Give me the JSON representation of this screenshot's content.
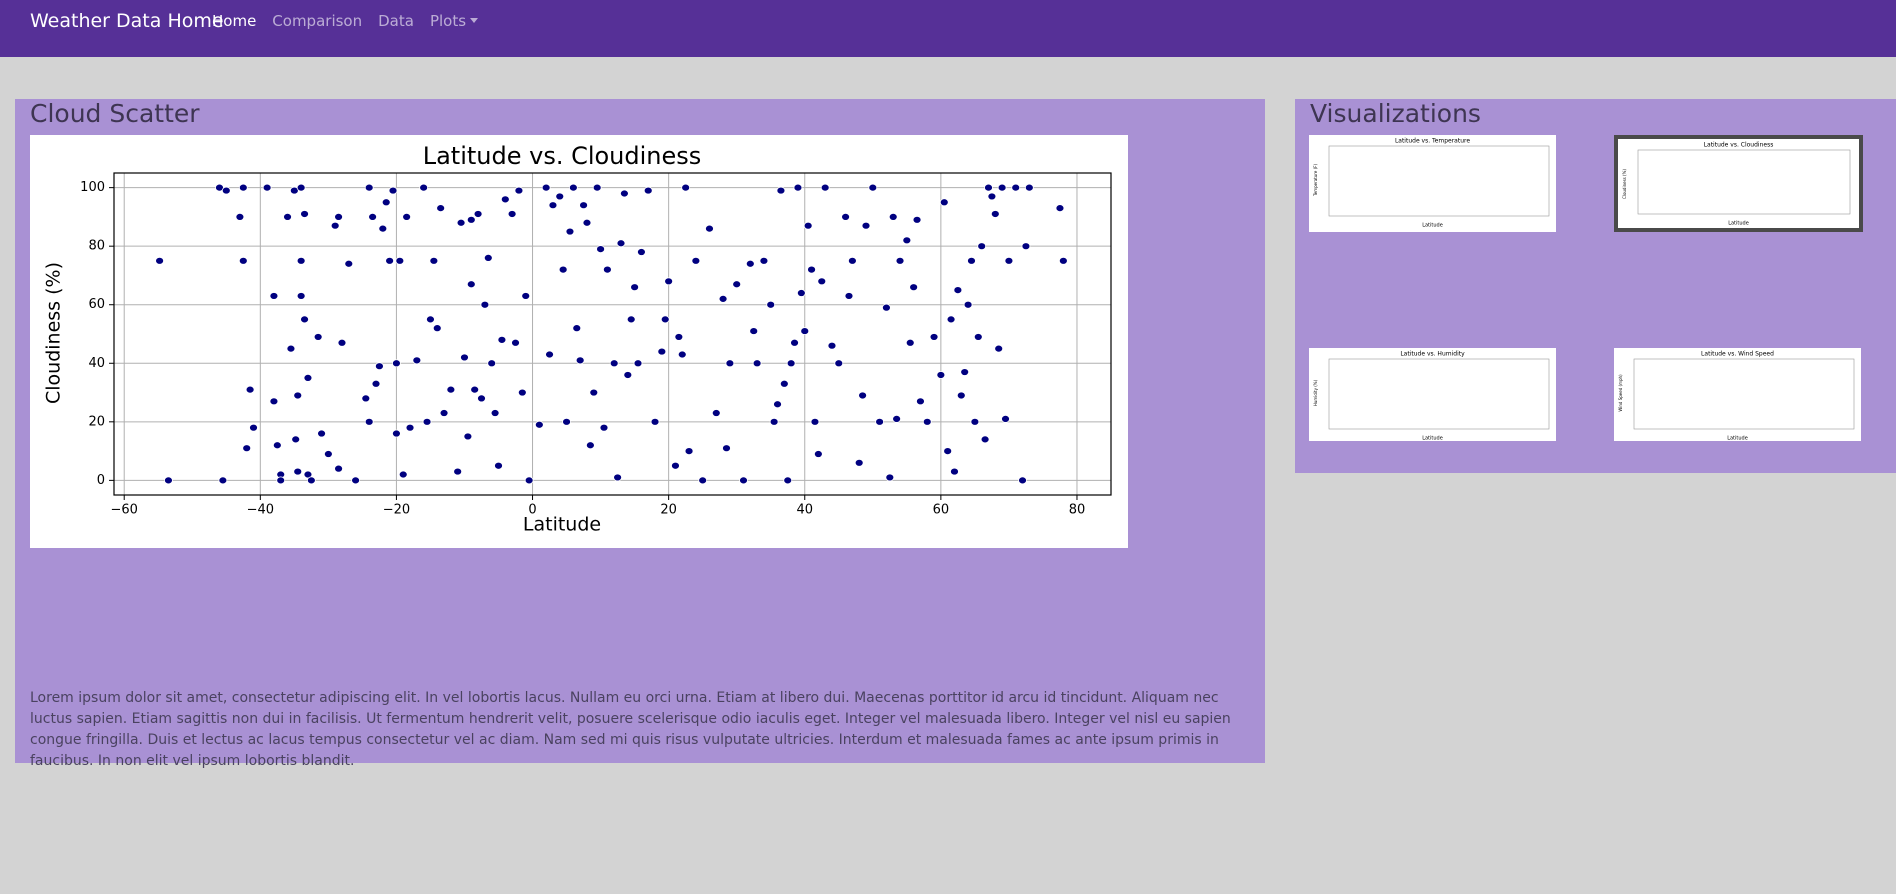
{
  "navbar": {
    "brand": "Weather Data Home",
    "links": [
      "Home",
      "Comparison",
      "Data",
      "Plots"
    ]
  },
  "main": {
    "heading": "Cloud Scatter",
    "paragraph": "Lorem ipsum dolor sit amet, consectetur adipiscing elit. In vel lobortis lacus. Nullam eu orci urna. Etiam at libero dui. Maecenas porttitor id arcu id tincidunt. Aliquam nec luctus sapien. Etiam sagittis non dui in facilisis. Ut fermentum hendrerit velit, posuere scelerisque odio iaculis eget. Integer vel malesuada libero. Integer vel nisl eu sapien congue fringilla. Duis et lectus ac lacus tempus consectetur vel ac diam. Nam sed mi quis risus vulputate ultricies. Interdum et malesuada fames ac ante ipsum primis in faucibus. In non elit vel ipsum lobortis blandit."
  },
  "chart_data": {
    "type": "scatter",
    "title": "Latitude vs. Cloudiness",
    "x_label": "Latitude",
    "y_label": "Cloudiness (%)",
    "color": "#000080",
    "grid": true,
    "xlim": [
      -61.5,
      85
    ],
    "ylim": [
      -5,
      105
    ],
    "xticks": [
      {
        "value": -60,
        "label": "−60"
      },
      {
        "value": -40,
        "label": "−40"
      },
      {
        "value": -20,
        "label": "−20"
      },
      0,
      20,
      40,
      60,
      80
    ],
    "yticks": [
      0,
      20,
      40,
      60,
      80,
      100
    ],
    "x": [
      -54.8,
      -53.5,
      -46,
      -45.5,
      -45,
      -43,
      -42.5,
      -42.5,
      -42,
      -41.5,
      -41,
      -39,
      -38,
      -38,
      -37.5,
      -37,
      -37,
      -36,
      -35.5,
      -35,
      -34.8,
      -34.5,
      -34.5,
      -34,
      -34,
      -34,
      -33.5,
      -33.5,
      -33,
      -33,
      -32.5,
      -31.5,
      -31,
      -30,
      -29,
      -28.5,
      -28.5,
      -28,
      -27,
      -26,
      -24.5,
      -24,
      -24,
      -23.5,
      -23,
      -22.5,
      -22,
      -21.5,
      -21,
      -20.5,
      -20,
      -20,
      -19.5,
      -19,
      -18.5,
      -18,
      -17,
      -16,
      -15.5,
      -15,
      -14.5,
      -14,
      -13.5,
      -13,
      -12,
      -11,
      -10.5,
      -10,
      -9.5,
      -9,
      -9,
      -8.5,
      -8,
      -7.5,
      -7,
      -6.5,
      -6,
      -5.5,
      -5,
      -4.5,
      -4,
      -3,
      -2.5,
      -2,
      -1.5,
      -1,
      -0.5,
      1,
      2,
      2.5,
      3,
      4,
      4.5,
      5,
      5.5,
      6,
      6.5,
      7,
      7.5,
      8,
      8.5,
      9,
      9.5,
      10,
      10.5,
      11,
      12,
      12.5,
      13,
      13.5,
      14,
      14.5,
      15,
      15.5,
      16,
      17,
      18,
      19,
      19.5,
      20,
      21,
      21.5,
      22,
      22.5,
      23,
      24,
      25,
      26,
      27,
      28,
      28.5,
      29,
      30,
      31,
      32,
      32.5,
      33,
      34,
      35,
      35.5,
      36,
      36.5,
      37,
      37.5,
      38,
      38.5,
      39,
      39.5,
      40,
      40.5,
      41,
      41.5,
      42,
      42.5,
      43,
      44,
      45,
      46,
      46.5,
      47,
      48,
      48.5,
      49,
      50,
      51,
      52,
      52.5,
      53,
      53.5,
      54,
      55,
      55.5,
      56,
      56.5,
      57,
      58,
      59,
      60,
      60.5,
      61,
      61.5,
      62,
      62.5,
      63,
      63.5,
      64,
      64.5,
      65,
      65.5,
      66,
      66.5,
      67,
      67.5,
      68,
      68.5,
      69,
      69.5,
      70,
      71,
      72,
      72.5,
      73,
      77.5,
      78
    ],
    "values": [
      75,
      0,
      100,
      0,
      99,
      90,
      75,
      100,
      11,
      31,
      18,
      100,
      63,
      27,
      12,
      2,
      0,
      90,
      45,
      99,
      14,
      29,
      3,
      100,
      75,
      63,
      55,
      91,
      35,
      2,
      0,
      49,
      16,
      9,
      87,
      90,
      4,
      47,
      74,
      0,
      28,
      100,
      20,
      90,
      33,
      39,
      86,
      95,
      75,
      99,
      16,
      40,
      75,
      2,
      90,
      18,
      41,
      100,
      20,
      55,
      75,
      52,
      93,
      23,
      31,
      3,
      88,
      42,
      15,
      89,
      67,
      31,
      91,
      28,
      60,
      76,
      40,
      23,
      5,
      48,
      96,
      91,
      47,
      99,
      30,
      63,
      0,
      19,
      100,
      43,
      94,
      97,
      72,
      20,
      85,
      100,
      52,
      41,
      94,
      88,
      12,
      30,
      100,
      79,
      18,
      72,
      40,
      1,
      81,
      98,
      36,
      55,
      66,
      40,
      78,
      99,
      20,
      44,
      55,
      68,
      5,
      49,
      43,
      100,
      10,
      75,
      0,
      86,
      23,
      62,
      11,
      40,
      67,
      0,
      74,
      51,
      40,
      75,
      60,
      20,
      26,
      99,
      33,
      0,
      40,
      47,
      100,
      64,
      51,
      87,
      72,
      20,
      9,
      68,
      100,
      46,
      40,
      90,
      63,
      75,
      6,
      29,
      87,
      100,
      20,
      59,
      1,
      90,
      21,
      75,
      82,
      47,
      66,
      89,
      27,
      20,
      49,
      36,
      95,
      10,
      55,
      3,
      65,
      29,
      37,
      60,
      75,
      20,
      49,
      80,
      14,
      100,
      97,
      91,
      45,
      100,
      21,
      75,
      100,
      0,
      80,
      100,
      93,
      75
    ]
  },
  "sidebar": {
    "heading": "Visualizations",
    "thumbnails": [
      {
        "title": "Latitude vs. Temperature",
        "x_label": "Latitude",
        "y_label": "Temperature (F)"
      },
      {
        "title": "Latitude vs. Cloudiness",
        "x_label": "Latitude",
        "y_label": "Cloudiness (%)"
      },
      {
        "title": "Latitude vs. Humidity",
        "x_label": "Latitude",
        "y_label": "Humidity (%)"
      },
      {
        "title": "Latitude vs. Wind Speed",
        "x_label": "Latitude",
        "y_label": "Wind Speed (mph)"
      }
    ]
  }
}
